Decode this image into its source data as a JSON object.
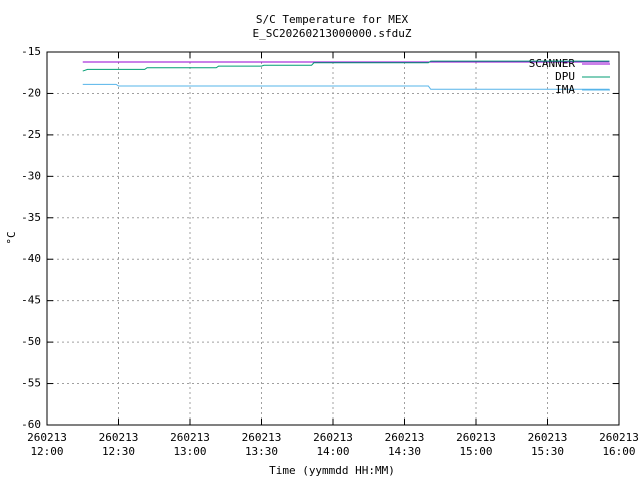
{
  "chart_data": {
    "type": "line",
    "title": "S/C Temperature for MEX",
    "subtitle": "E_SC20260213000000.sfduZ",
    "x_label": "Time (yymmdd HH:MM)",
    "y_label": "°C",
    "xlim": [
      "260213 12:00",
      "260213 16:00"
    ],
    "xticks": [
      "260213 12:00",
      "260213 12:30",
      "260213 13:00",
      "260213 13:30",
      "260213 14:00",
      "260213 14:30",
      "260213 15:00",
      "260213 15:30",
      "260213 16:00"
    ],
    "ylim": [
      -60,
      -15
    ],
    "yticks": [
      -15,
      -20,
      -25,
      -30,
      -35,
      -40,
      -45,
      -50,
      -55,
      -60
    ],
    "grid": true,
    "legend": "top-right",
    "series": [
      {
        "name": "SCANNER",
        "color": "#9400d3",
        "x": [
          "260213 12:15",
          "260213 15:56"
        ],
        "values": [
          -16.2,
          -16.2
        ]
      },
      {
        "name": "DPU",
        "color": "#009e73",
        "x": [
          "260213 12:15",
          "260213 12:17",
          "260213 12:41",
          "260213 12:42",
          "260213 13:11",
          "260213 13:12",
          "260213 13:30",
          "260213 13:31",
          "260213 13:51",
          "260213 13:52",
          "260213 14:40",
          "260213 14:41",
          "260213 15:56"
        ],
        "values": [
          -17.3,
          -17.1,
          -17.1,
          -16.9,
          -16.9,
          -16.7,
          -16.7,
          -16.6,
          -16.6,
          -16.3,
          -16.3,
          -16.1,
          -16.1
        ]
      },
      {
        "name": "IMA",
        "color": "#56b4e9",
        "x": [
          "260213 12:15",
          "260213 12:29",
          "260213 12:30",
          "260213 14:40",
          "260213 14:41",
          "260213 15:56"
        ],
        "values": [
          -18.9,
          -18.9,
          -19.1,
          -19.1,
          -19.5,
          -19.5
        ]
      }
    ]
  }
}
